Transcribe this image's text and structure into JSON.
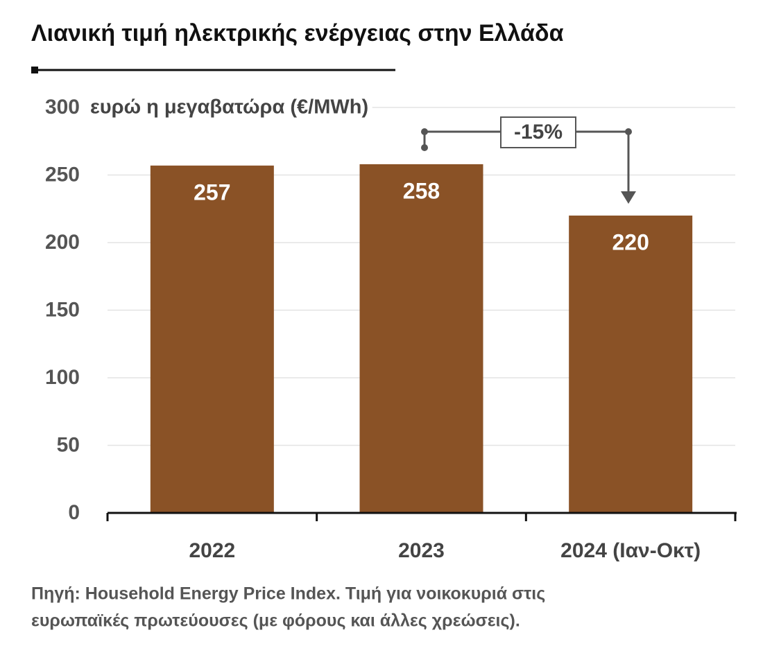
{
  "chart_data": {
    "type": "bar",
    "title": "Λιανική τιμή ηλεκτρικής ενέργειας στην Ελλάδα",
    "y_label": "ευρώ η μεγαβατώρα (€/MWh)",
    "categories": [
      "2022",
      "2023",
      "2024 (Ιαν-Οκτ)"
    ],
    "values": [
      257,
      258,
      220
    ],
    "color": "#8a5226",
    "ylim": [
      0,
      300
    ],
    "yticks": [
      0,
      50,
      100,
      150,
      200,
      250,
      300
    ],
    "grid": true,
    "annotation": "-15%",
    "source": [
      "Πηγή: Household Energy Price Index. Τιμή για νοικοκυριά στις",
      "ευρωπαϊκές πρωτεύουσες (με φόρους και άλλες χρεώσεις)."
    ]
  }
}
